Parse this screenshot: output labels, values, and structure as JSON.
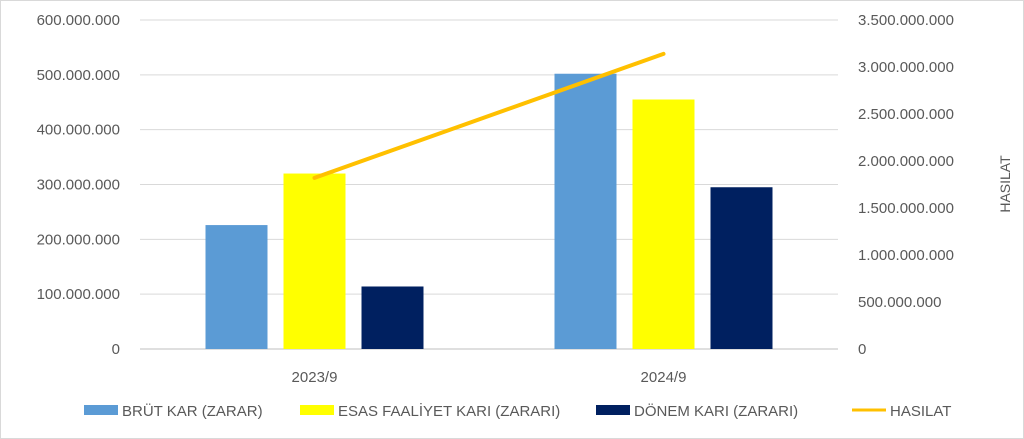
{
  "chart_data": {
    "type": "bar",
    "categories": [
      "2023/9",
      "2024/9"
    ],
    "series": [
      {
        "name": "BRÜT KAR (ZARAR)",
        "values": [
          226000000,
          502000000
        ],
        "color": "#5B9BD5",
        "axis": "left",
        "kind": "bar"
      },
      {
        "name": "ESAS FAALİYET KARI (ZARARI)",
        "values": [
          320000000,
          455000000
        ],
        "color": "#FFFF00",
        "axis": "left",
        "kind": "bar"
      },
      {
        "name": "DÖNEM KARI (ZARARI)",
        "values": [
          114000000,
          295000000
        ],
        "color": "#002060",
        "axis": "left",
        "kind": "bar"
      },
      {
        "name": "HASILAT",
        "values": [
          1820000000,
          3140000000
        ],
        "color": "#FFC000",
        "axis": "right",
        "kind": "line"
      }
    ],
    "y_left": {
      "lim": [
        0,
        600000000
      ],
      "ticks": [
        "0",
        "100.000.000",
        "200.000.000",
        "300.000.000",
        "400.000.000",
        "500.000.000",
        "600.000.000"
      ]
    },
    "y_right": {
      "label": "HASILAT",
      "lim": [
        0,
        3500000000
      ],
      "ticks": [
        "0",
        "500.000.000",
        "1.000.000.000",
        "1.500.000.000",
        "2.000.000.000",
        "2.500.000.000",
        "3.000.000.000",
        "3.500.000.000"
      ]
    },
    "grid": true,
    "legend": "bottom"
  }
}
